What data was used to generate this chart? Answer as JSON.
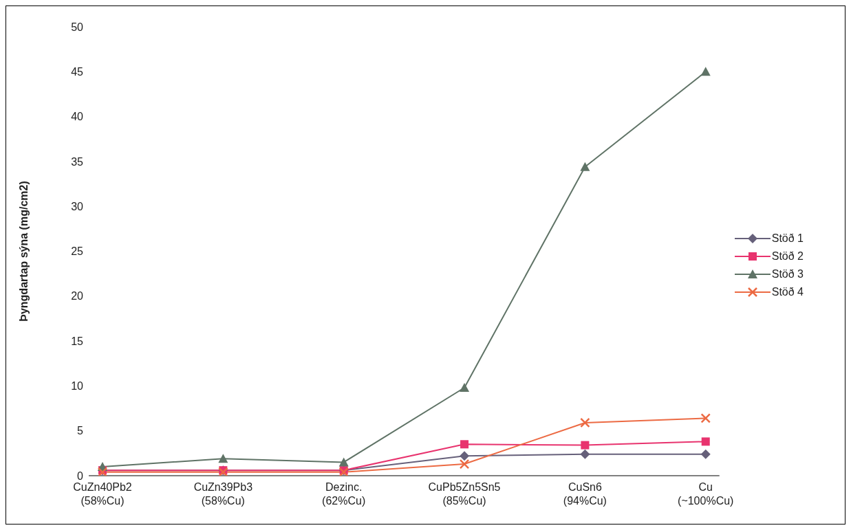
{
  "chart_data": {
    "type": "line",
    "ylabel": "Þyngdartap sýna (mg/cm2)",
    "categories": [
      "CuZn40Pb2\n(58%Cu)",
      "CuZn39Pb3\n(58%Cu)",
      "Dezinc.\n(62%Cu)",
      "CuPb5Zn5Sn5\n(85%Cu)",
      "CuSn6\n(94%Cu)",
      "Cu\n(~100%Cu)"
    ],
    "series": [
      {
        "name": "Stöð 1",
        "color": "#66607a",
        "marker": "diamond",
        "values": [
          0.6,
          0.6,
          0.6,
          2.2,
          2.4,
          2.4
        ]
      },
      {
        "name": "Stöð 2",
        "color": "#e8336e",
        "marker": "square",
        "values": [
          0.6,
          0.6,
          0.6,
          3.5,
          3.4,
          3.8
        ]
      },
      {
        "name": "Stöð 3",
        "color": "#5f7366",
        "marker": "triangle",
        "values": [
          1.0,
          1.9,
          1.5,
          9.8,
          34.4,
          45
        ]
      },
      {
        "name": "Stöð 4",
        "color": "#ec6a43",
        "marker": "cross",
        "values": [
          0.4,
          0.4,
          0.4,
          1.3,
          5.9,
          6.4
        ]
      }
    ],
    "ylim": [
      0,
      50
    ],
    "yticks": [
      0,
      5,
      10,
      15,
      20,
      25,
      30,
      35,
      40,
      45,
      50
    ],
    "grid": false,
    "legend": "right",
    "line_style": "solid"
  }
}
